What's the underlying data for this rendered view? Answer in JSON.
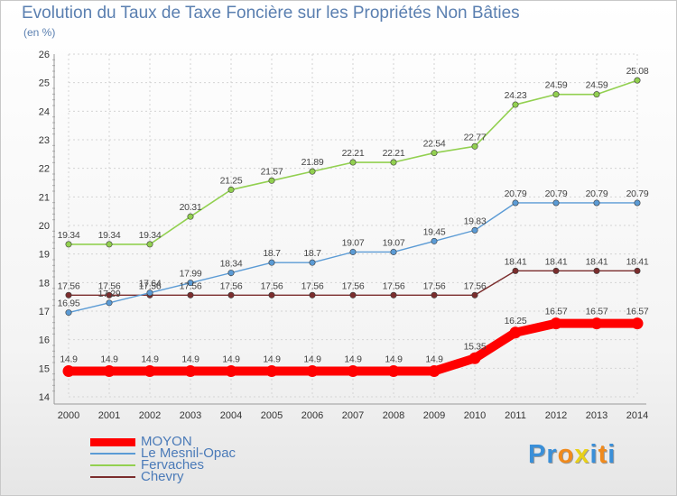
{
  "chart_data": {
    "type": "line",
    "title": "Evolution du Taux de Taxe Foncière sur les Propriétés Non Bâties",
    "ylabel": "(en %)",
    "ylim": [
      14,
      26
    ],
    "yticks": [
      "14",
      "15",
      "16",
      "17",
      "18",
      "19",
      "20",
      "21",
      "22",
      "23",
      "24",
      "25",
      "26"
    ],
    "grid": true,
    "categories": [
      "2000",
      "2001",
      "2002",
      "2003",
      "2004",
      "2005",
      "2006",
      "2007",
      "2008",
      "2009",
      "2010",
      "2011",
      "2012",
      "2013",
      "2014"
    ],
    "series": [
      {
        "name": "MOYON",
        "color": "#ff0000",
        "values": [
          14.9,
          14.9,
          14.9,
          14.9,
          14.9,
          14.9,
          14.9,
          14.9,
          14.9,
          14.9,
          15.35,
          16.25,
          16.57,
          16.57,
          16.57
        ],
        "labels": [
          "14.9",
          "14.9",
          "14.9",
          "14.9",
          "14.9",
          "14.9",
          "14.9",
          "14.9",
          "14.9",
          "14.9",
          "15.35",
          "16.25",
          "16.57",
          "16.57",
          "16.57"
        ]
      },
      {
        "name": "Le Mesnil-Opac",
        "color": "#5b9bd5",
        "values": [
          16.95,
          17.29,
          17.64,
          17.99,
          18.34,
          18.7,
          18.7,
          19.07,
          19.07,
          19.45,
          19.83,
          20.79,
          20.79,
          20.79,
          20.79
        ],
        "labels": [
          "16.95",
          "17.29",
          "17.64",
          "17.99",
          "18.34",
          "18.7",
          "18.7",
          "19.07",
          "19.07",
          "19.45",
          "19.83",
          "20.79",
          "20.79",
          "20.79",
          "20.79"
        ]
      },
      {
        "name": "Fervaches",
        "color": "#92d050",
        "values": [
          19.34,
          19.34,
          19.34,
          20.31,
          21.25,
          21.57,
          21.89,
          22.21,
          22.21,
          22.54,
          22.77,
          24.23,
          24.59,
          24.59,
          25.08
        ],
        "labels": [
          "19.34",
          "19.34",
          "19.34",
          "20.31",
          "21.25",
          "21.57",
          "21.89",
          "22.21",
          "22.21",
          "22.54",
          "22.77",
          "24.23",
          "24.59",
          "24.59",
          "25.08"
        ]
      },
      {
        "name": "Chevry",
        "color": "#7b2d2d",
        "values": [
          17.56,
          17.56,
          17.56,
          17.56,
          17.56,
          17.56,
          17.56,
          17.56,
          17.56,
          17.56,
          17.56,
          18.41,
          18.41,
          18.41,
          18.41
        ],
        "labels": [
          "17.56",
          "17.56",
          "17.56",
          "17.56",
          "17.56",
          "17.56",
          "17.56",
          "17.56",
          "17.56",
          "17.56",
          "17.56",
          "18.41",
          "18.41",
          "18.41",
          "18.41"
        ]
      }
    ],
    "legend_position": "bottom-left"
  },
  "logo": {
    "letters": [
      "P",
      "r",
      "o",
      "x",
      "i",
      "t",
      "i"
    ],
    "colors": [
      "#3a8fd8",
      "#3a8fd8",
      "#f08a1c",
      "#e8d01a",
      "#3a8fd8",
      "#f08a1c",
      "#3a8fd8"
    ]
  }
}
